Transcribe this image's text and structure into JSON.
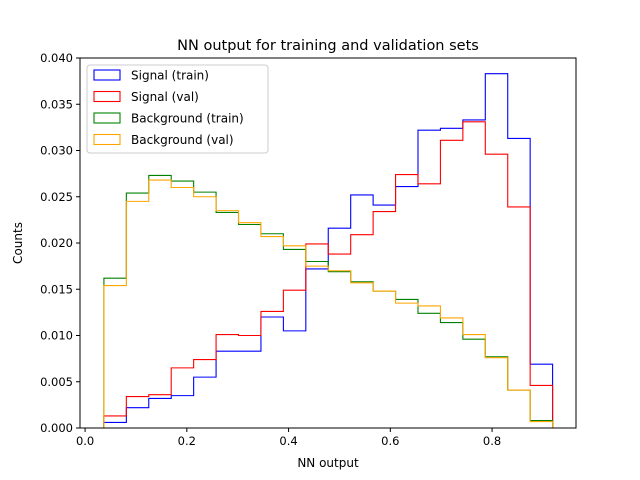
{
  "chart_data": {
    "type": "histogram",
    "title": "NN output for training and validation sets",
    "xlabel": "NN output",
    "ylabel": "Counts",
    "xlim": [
      -0.01,
      0.965
    ],
    "ylim": [
      0.0,
      0.04
    ],
    "x_ticks": [
      0.0,
      0.2,
      0.4,
      0.6,
      0.8
    ],
    "x_tick_labels": [
      "0.0",
      "0.2",
      "0.4",
      "0.6",
      "0.8"
    ],
    "y_ticks": [
      0.0,
      0.005,
      0.01,
      0.015,
      0.02,
      0.025,
      0.03,
      0.035,
      0.04
    ],
    "y_tick_labels": [
      "0.000",
      "0.005",
      "0.010",
      "0.015",
      "0.020",
      "0.025",
      "0.030",
      "0.035",
      "0.040"
    ],
    "grid": false,
    "legend_position": "top-left",
    "bin_edges": [
      0.037,
      0.0811,
      0.1252,
      0.1693,
      0.2134,
      0.2575,
      0.3016,
      0.3457,
      0.3898,
      0.4339,
      0.478,
      0.5221,
      0.5662,
      0.6103,
      0.6544,
      0.6985,
      0.7426,
      0.7867,
      0.8308,
      0.8749,
      0.919
    ],
    "series": [
      {
        "name": "Signal (train)",
        "color": "#0000ff",
        "histtype": "step",
        "values": [
          0.0006,
          0.0022,
          0.0032,
          0.0035,
          0.0055,
          0.0083,
          0.0083,
          0.012,
          0.0105,
          0.0172,
          0.0216,
          0.0252,
          0.0241,
          0.0261,
          0.0322,
          0.0324,
          0.0333,
          0.0383,
          0.0313,
          0.0069
        ]
      },
      {
        "name": "Signal (val)",
        "color": "#ff0000",
        "histtype": "step",
        "values": [
          0.0013,
          0.0034,
          0.0036,
          0.0065,
          0.0074,
          0.0101,
          0.01,
          0.0126,
          0.0149,
          0.0199,
          0.0188,
          0.0209,
          0.0234,
          0.0274,
          0.0264,
          0.0311,
          0.0331,
          0.0296,
          0.0239,
          0.0046
        ]
      },
      {
        "name": "Background (train)",
        "color": "#008000",
        "histtype": "step",
        "values": [
          0.0162,
          0.0254,
          0.0273,
          0.0267,
          0.0255,
          0.0233,
          0.022,
          0.021,
          0.0193,
          0.018,
          0.0169,
          0.0158,
          0.0148,
          0.0139,
          0.0124,
          0.0114,
          0.0096,
          0.0077,
          0.0041,
          0.0008
        ]
      },
      {
        "name": "Background (val)",
        "color": "#ffa500",
        "histtype": "step",
        "values": [
          0.0154,
          0.0245,
          0.0268,
          0.026,
          0.025,
          0.0235,
          0.0222,
          0.0207,
          0.0197,
          0.0175,
          0.017,
          0.0157,
          0.0148,
          0.0135,
          0.0132,
          0.0119,
          0.0101,
          0.0076,
          0.0041,
          0.0007
        ]
      }
    ]
  }
}
